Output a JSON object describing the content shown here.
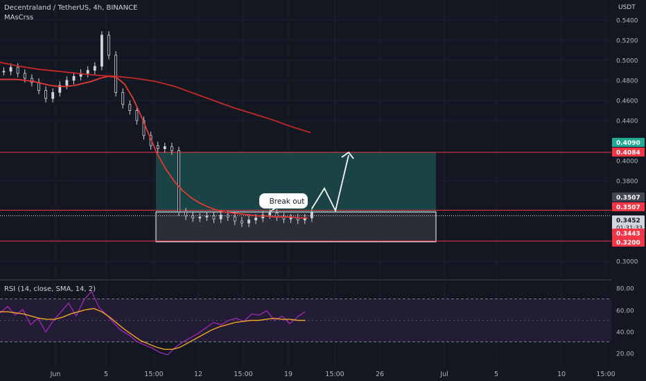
{
  "header": {
    "title": "Decentraland / TetherUS, 4h, BINANCE",
    "indicator": "MAsCrss",
    "unit": "USDT"
  },
  "rsi": {
    "label": "RSI (14, close, SMA, 14, 2)"
  },
  "annotation": {
    "text": "Break out"
  },
  "colors": {
    "background": "#131722",
    "up": "#d1d4dc",
    "ma_fast": "#e53935",
    "ma_slow": "#c62828",
    "level": "#f23645",
    "zone": "#1a4a4a",
    "rsi_line": "#9c27b0",
    "rsi_sma": "#f5a623",
    "rsi_band": "#2a1f3d"
  },
  "chart_data": [
    {
      "type": "line",
      "title": "Decentraland / TetherUS, 4h, BINANCE",
      "ylabel": "USDT",
      "x_ticks": [
        "Jun",
        "5",
        "15:00",
        "12",
        "15:00",
        "19",
        "15:00",
        "26",
        "Jul",
        "5",
        "10",
        "15:00"
      ],
      "y_ticks": [
        "0.5400",
        "0.5200",
        "0.5000",
        "0.4800",
        "0.4600",
        "0.4400",
        "0.4000",
        "0.3800",
        "0.3000"
      ],
      "ylim": [
        0.29,
        0.55
      ],
      "price_labels": [
        {
          "text": "0.4090",
          "color": "#22ab94"
        },
        {
          "text": "0.4084",
          "color": "#f23645"
        },
        {
          "text": "0.3507",
          "color": "#434651"
        },
        {
          "text": "0.3507",
          "color": "#f23645"
        },
        {
          "text": "0.3452",
          "sub": "01:31:33",
          "color": "#d1d4dc"
        },
        {
          "text": "0.3443",
          "color": "#f23645"
        },
        {
          "text": "0.3200",
          "color": "#f23645"
        }
      ],
      "levels": [
        0.4084,
        0.3507,
        0.32
      ],
      "series": [
        {
          "values": [
            0.489,
            0.493,
            0.487,
            0.482,
            0.478,
            0.47,
            0.462,
            0.468,
            0.475,
            0.48,
            0.484,
            0.487,
            0.49,
            0.494,
            0.525,
            0.505,
            0.468,
            0.456,
            0.45,
            0.44,
            0.425,
            0.415,
            0.412,
            0.414,
            0.41,
            0.349,
            0.345,
            0.343,
            0.344,
            0.345,
            0.342,
            0.346,
            0.344,
            0.34,
            0.338,
            0.341,
            0.343,
            0.346,
            0.348,
            0.344,
            0.342,
            0.343,
            0.341,
            0.343,
            0.349
          ]
        },
        {
          "values": [
            0.481,
            0.481,
            0.481,
            0.48,
            0.479,
            0.477,
            0.475,
            0.474,
            0.474,
            0.475,
            0.477,
            0.479,
            0.482,
            0.484,
            0.483,
            0.476,
            0.462,
            0.444,
            0.424,
            0.405,
            0.391,
            0.379,
            0.37,
            0.363,
            0.358,
            0.354,
            0.351,
            0.349,
            0.348,
            0.347,
            0.346,
            0.345,
            0.345,
            0.344,
            0.344,
            0.344,
            0.343,
            0.343
          ]
        },
        {
          "values": [
            0.498,
            0.494,
            0.491,
            0.489,
            0.487,
            0.485,
            0.484,
            0.482,
            0.479,
            0.474,
            0.467,
            0.46,
            0.453,
            0.447,
            0.441,
            0.434,
            0.428
          ]
        }
      ]
    },
    {
      "type": "line",
      "title": "RSI (14, close, SMA, 14, 2)",
      "y_ticks": [
        "80.00",
        "60.00",
        "40.00",
        "20.00"
      ],
      "ylim": [
        15,
        85
      ],
      "bands": [
        70,
        30
      ],
      "series": [
        {
          "values": [
            57,
            63,
            55,
            60,
            46,
            52,
            39,
            50,
            58,
            66,
            54,
            69,
            77,
            62,
            55,
            47,
            40,
            36,
            30,
            27,
            24,
            20,
            18,
            25,
            30,
            34,
            38,
            43,
            48,
            46,
            50,
            52,
            49,
            56,
            55,
            59,
            50,
            54,
            47,
            53,
            58
          ]
        },
        {
          "values": [
            58,
            58,
            57,
            56,
            54,
            52,
            51,
            51,
            53,
            56,
            58,
            60,
            61,
            58,
            53,
            47,
            41,
            36,
            31,
            28,
            25,
            23,
            23,
            25,
            29,
            33,
            37,
            41,
            44,
            46,
            48,
            49,
            50,
            50,
            51,
            52,
            51,
            51,
            50,
            50
          ]
        }
      ]
    }
  ]
}
